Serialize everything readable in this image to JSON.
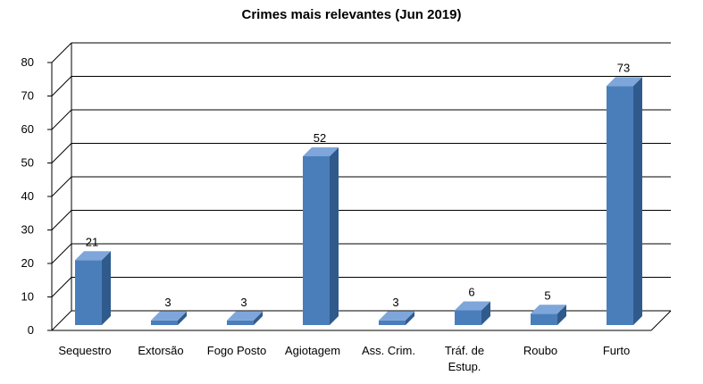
{
  "chart_data": {
    "type": "bar",
    "title": "Crimes mais relevantes (Jun 2019)",
    "categories": [
      [
        "Sequestro"
      ],
      [
        "Extorsão"
      ],
      [
        "Fogo Posto"
      ],
      [
        "Agiotagem"
      ],
      [
        "Ass. Crim."
      ],
      [
        "Tráf. de",
        "Estup."
      ],
      [
        "Roubo"
      ],
      [
        "Furto"
      ]
    ],
    "values": [
      21,
      3,
      3,
      52,
      3,
      6,
      5,
      73
    ],
    "ylim": [
      0,
      80
    ],
    "yticks": [
      0,
      10,
      20,
      30,
      40,
      50,
      60,
      70,
      80
    ],
    "grid": true,
    "style": "3d-column",
    "colors": {
      "front": "#4a7ebb",
      "side": "#2f5a8c",
      "top": "#7ea6da",
      "grid": "#000000"
    }
  }
}
